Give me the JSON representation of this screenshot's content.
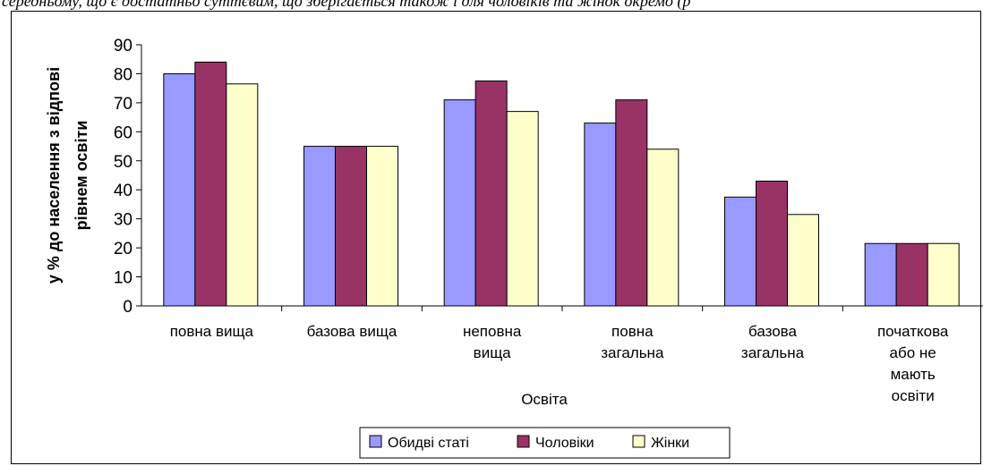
{
  "page": {
    "top_text": "середньому, що є достатньо суттєвим, що зберігається також і для чоловіків та жінок окремо (р"
  },
  "chart_data": {
    "type": "bar",
    "categories": [
      [
        "повна вища"
      ],
      [
        "базова вища"
      ],
      [
        "неповна",
        "вища"
      ],
      [
        "повна",
        "загальна"
      ],
      [
        "базова",
        "загальна"
      ],
      [
        "початкова",
        "або не",
        "мають",
        "освіти"
      ]
    ],
    "series": [
      {
        "name": "Обидві статі",
        "color": "#9999ff",
        "values": [
          80,
          55,
          71,
          63,
          37.5,
          21.5
        ]
      },
      {
        "name": "Чоловіки",
        "color": "#993366",
        "values": [
          84,
          55,
          77.5,
          71,
          43,
          21.5
        ]
      },
      {
        "name": "Жінки",
        "color": "#ffffcc",
        "values": [
          76.5,
          55,
          67,
          54,
          31.5,
          21.5
        ]
      }
    ],
    "ylim": [
      0,
      90
    ],
    "yticks": [
      0,
      10,
      20,
      30,
      40,
      50,
      60,
      70,
      80,
      90
    ],
    "xlabel": "Освіта",
    "ylabel": [
      "у % до населення з відпові",
      "рівнем освіти"
    ],
    "grid": false,
    "legend_position": "bottom"
  }
}
